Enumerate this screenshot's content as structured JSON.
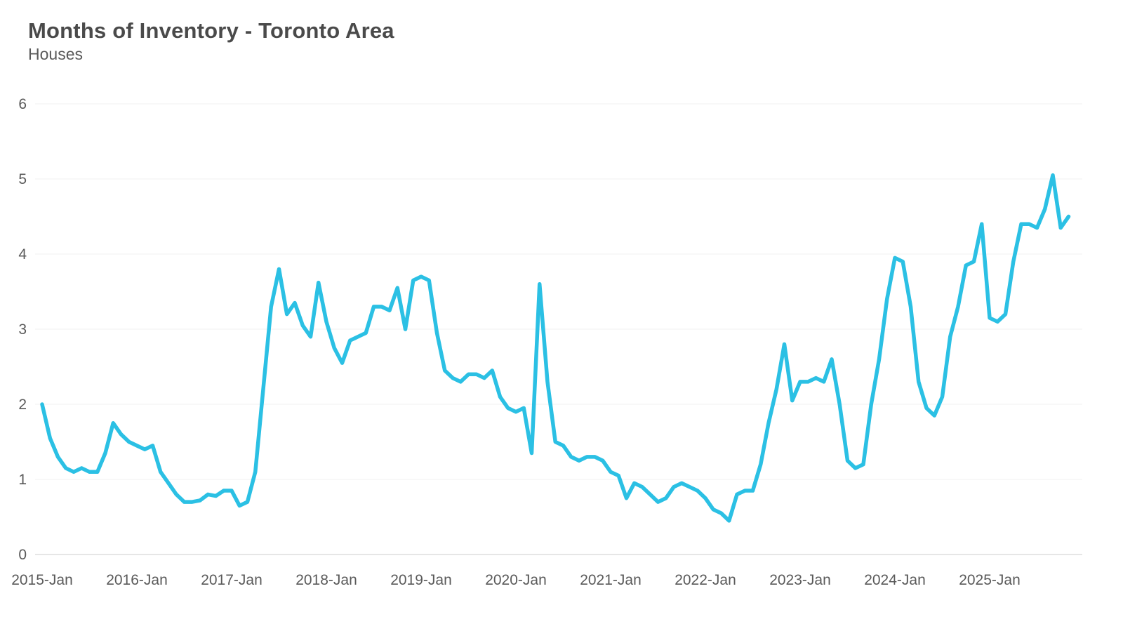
{
  "chart_data": {
    "type": "line",
    "title": "Months of Inventory - Toronto Area",
    "subtitle": "Houses",
    "series_name": "Months of Inventory",
    "x_start": "2015-Jan",
    "frequency": "monthly",
    "x_tick_labels": [
      "2015-Jan",
      "2016-Jan",
      "2017-Jan",
      "2018-Jan",
      "2019-Jan",
      "2020-Jan",
      "2021-Jan",
      "2022-Jan",
      "2023-Jan",
      "2024-Jan",
      "2025-Jan"
    ],
    "y_ticks": [
      0,
      1,
      2,
      3,
      4,
      5,
      6
    ],
    "ylim": [
      0,
      6
    ],
    "grid": "horizontal",
    "legend": "none",
    "line_color": "#2bc0e4",
    "axis_text_color": "#5a5a5a",
    "gridline_color": "#f0f0f0",
    "baseline_color": "#dddddd",
    "values": [
      2.0,
      1.55,
      1.3,
      1.15,
      1.1,
      1.15,
      1.1,
      1.1,
      1.35,
      1.75,
      1.6,
      1.5,
      1.45,
      1.4,
      1.45,
      1.1,
      0.95,
      0.8,
      0.7,
      0.7,
      0.72,
      0.8,
      0.78,
      0.85,
      0.85,
      0.65,
      0.7,
      1.1,
      2.2,
      3.3,
      3.8,
      3.2,
      3.35,
      3.05,
      2.9,
      3.62,
      3.1,
      2.75,
      2.55,
      2.85,
      2.9,
      2.95,
      3.3,
      3.3,
      3.25,
      3.55,
      3.0,
      3.65,
      3.7,
      3.65,
      2.95,
      2.45,
      2.35,
      2.3,
      2.4,
      2.4,
      2.35,
      2.45,
      2.1,
      1.95,
      1.9,
      1.95,
      1.35,
      3.6,
      2.3,
      1.5,
      1.45,
      1.3,
      1.25,
      1.3,
      1.3,
      1.25,
      1.1,
      1.05,
      0.75,
      0.95,
      0.9,
      0.8,
      0.7,
      0.75,
      0.9,
      0.95,
      0.9,
      0.85,
      0.75,
      0.6,
      0.55,
      0.45,
      0.8,
      0.85,
      0.85,
      1.2,
      1.75,
      2.2,
      2.8,
      2.05,
      2.3,
      2.3,
      2.35,
      2.3,
      2.6,
      2.0,
      1.25,
      1.15,
      1.2,
      2.0,
      2.6,
      3.4,
      3.95,
      3.9,
      3.3,
      2.3,
      1.95,
      1.85,
      2.1,
      2.9,
      3.3,
      3.85,
      3.9,
      4.4,
      3.15,
      3.1,
      3.2,
      3.9,
      4.4,
      4.4,
      4.35,
      4.6,
      5.05,
      4.35,
      4.5
    ]
  }
}
